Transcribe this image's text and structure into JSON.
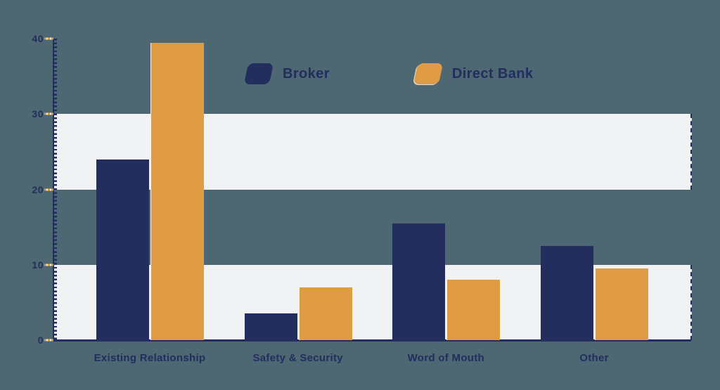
{
  "colors": {
    "background": "#4d6872",
    "band": "#f1f2f4",
    "navy": "#232d5e",
    "orange": "#e09c45"
  },
  "chart_data": {
    "type": "bar",
    "title": "",
    "xlabel": "",
    "ylabel": "",
    "categories": [
      "Existing Relationship",
      "Safety & Security",
      "Word of Mouth",
      "Other"
    ],
    "series": [
      {
        "name": "Broker",
        "color": "#232d5e",
        "values": [
          24,
          3.5,
          15.5,
          12.5
        ]
      },
      {
        "name": "Direct Bank",
        "color": "#e09c45",
        "values": [
          39.5,
          7,
          8,
          9.5
        ]
      }
    ],
    "ylim": [
      0,
      40
    ],
    "yticks": [
      0,
      10,
      20,
      30,
      40
    ],
    "grid": "alternating horizontal bands (0-10 and 20-30 light)",
    "bands": [
      [
        0,
        10
      ],
      [
        20,
        30
      ]
    ],
    "legend_position": "top-center"
  }
}
